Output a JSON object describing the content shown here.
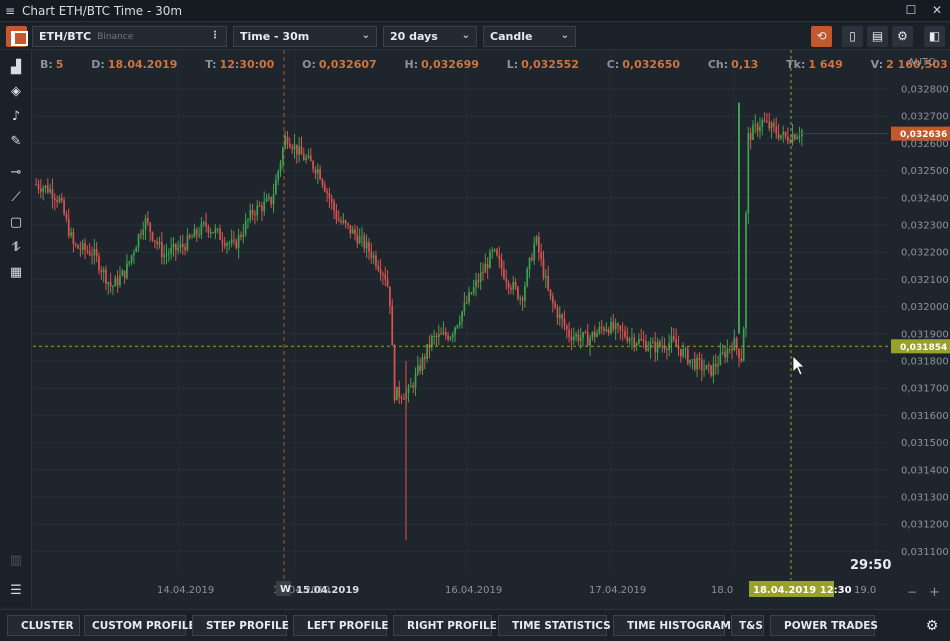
{
  "window": {
    "title": "Chart ETH/BTC Time - 30m"
  },
  "toolbar": {
    "symbol": "ETH/BTC",
    "exchange": "Binance",
    "timeframe": "Time - 30m",
    "period": "20 days",
    "chart_type": "Candle"
  },
  "info": {
    "B": "5",
    "D": "18.04.2019",
    "T": "12:30:00",
    "O": "0,032607",
    "H": "0,032699",
    "L": "0,032552",
    "C": "0,032650",
    "Ch": "0,13",
    "Tk": "1 649",
    "V": "2 160,503"
  },
  "labels": {
    "auto": "AUTO",
    "timer": "29:50",
    "week_marker": "W"
  },
  "colors": {
    "up": "#3fa34d",
    "down": "#d9534f",
    "accent": "#c2582b",
    "crosshair": "#9aa12b"
  },
  "chart_data": {
    "type": "candlestick",
    "y_ticks": [
      "0,032800",
      "0,032700",
      "0,032600",
      "0,032500",
      "0,032400",
      "0,032300",
      "0,032200",
      "0,032100",
      "0,032000",
      "0,031900",
      "0,031800",
      "0,031700",
      "0,031600",
      "0,031500",
      "0,031400",
      "0,031300",
      "0,031200",
      "0,031100"
    ],
    "ylim": [
      0.0311,
      0.0328
    ],
    "x_ticks": [
      "14.04.2019",
      "15.04.2019",
      "16.04.2019",
      "17.04.2019",
      "18.0",
      "19.0"
    ],
    "current_price": "0,032636",
    "crosshair_price": "0,031854",
    "crosshair_time": "18.04.2019 12:30",
    "close_path": [
      [
        0,
        0.03245
      ],
      [
        6,
        0.03243
      ],
      [
        10,
        0.03239
      ],
      [
        16,
        0.03222
      ],
      [
        24,
        0.0322
      ],
      [
        32,
        0.03207
      ],
      [
        38,
        0.03213
      ],
      [
        46,
        0.03232
      ],
      [
        54,
        0.03219
      ],
      [
        62,
        0.03222
      ],
      [
        72,
        0.0323
      ],
      [
        84,
        0.03222
      ],
      [
        92,
        0.03235
      ],
      [
        100,
        0.03239
      ],
      [
        106,
        0.03263
      ],
      [
        112,
        0.03256
      ],
      [
        120,
        0.0325
      ],
      [
        128,
        0.03232
      ],
      [
        136,
        0.03226
      ],
      [
        142,
        0.0322
      ],
      [
        148,
        0.03212
      ],
      [
        150,
        0.03205
      ],
      [
        152,
        0.03168
      ],
      [
        158,
        0.03168
      ],
      [
        168,
        0.03188
      ],
      [
        176,
        0.0319
      ],
      [
        186,
        0.03207
      ],
      [
        194,
        0.0322
      ],
      [
        200,
        0.0321
      ],
      [
        206,
        0.03203
      ],
      [
        212,
        0.03225
      ],
      [
        218,
        0.03203
      ],
      [
        226,
        0.0319
      ],
      [
        234,
        0.03188
      ],
      [
        242,
        0.03193
      ],
      [
        254,
        0.03188
      ],
      [
        262,
        0.03185
      ],
      [
        270,
        0.03187
      ],
      [
        278,
        0.0318
      ],
      [
        286,
        0.03176
      ],
      [
        296,
        0.03187
      ],
      [
        300,
        0.0318
      ],
      [
        302,
        0.03262
      ],
      [
        308,
        0.03268
      ],
      [
        318,
        0.03262
      ],
      [
        326,
        0.03265
      ]
    ]
  },
  "panels": [
    {
      "label": "CLUSTER",
      "dot": true
    },
    {
      "label": "CUSTOM PROFILE",
      "dot": false
    },
    {
      "label": "STEP PROFILE",
      "dot": true
    },
    {
      "label": "LEFT PROFILE",
      "dot": true
    },
    {
      "label": "RIGHT PROFILE",
      "dot": true
    },
    {
      "label": "TIME STATISTICS",
      "dot": true
    },
    {
      "label": "TIME HISTOGRAM",
      "dot": true
    },
    {
      "label": "T&S",
      "dot": false
    },
    {
      "label": "POWER TRADES",
      "dot": true
    }
  ]
}
